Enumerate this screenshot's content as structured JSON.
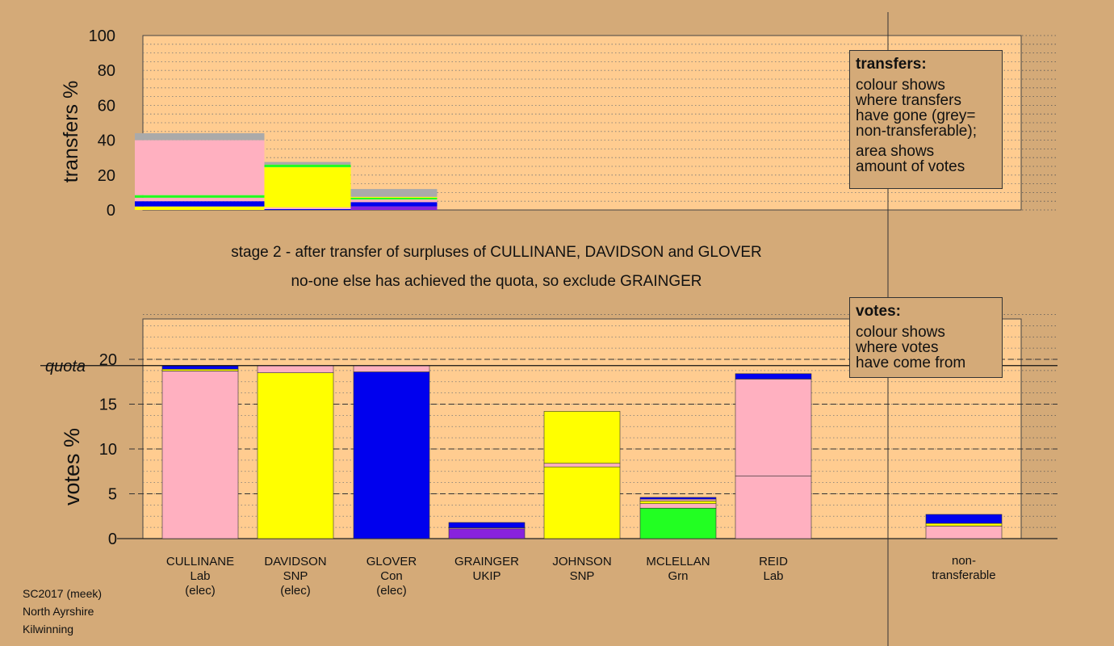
{
  "colors": {
    "background": "#d4aa78",
    "plot": "#ffcc90",
    "Lab": "#ffb0c0",
    "SNP": "#ffff00",
    "Con": "#0000ee",
    "UKIP": "#8822dd",
    "Grn": "#22ff22",
    "non_transferable": "#aaaaaa"
  },
  "caption": {
    "line1": "stage 2 - after transfer of surpluses of CULLINANE, DAVIDSON and GLOVER",
    "line2": "no-one else has achieved the quota, so exclude GRAINGER"
  },
  "footer": {
    "line1": "SC2017 (meek)",
    "line2": "North Ayrshire",
    "line3": "Kilwinning"
  },
  "legend_transfers": {
    "title": "transfers:",
    "lines_a": [
      "colour shows",
      "where transfers",
      "have gone (grey=",
      "non-transferable);"
    ],
    "lines_b": [
      "area shows",
      "amount of votes"
    ]
  },
  "legend_votes": {
    "title": "votes:",
    "lines": [
      "colour shows",
      "where votes",
      "have come from"
    ]
  },
  "candidates": [
    {
      "name": "CULLINANE",
      "party": "Lab",
      "status": "(elec)"
    },
    {
      "name": "DAVIDSON",
      "party": "SNP",
      "status": "(elec)"
    },
    {
      "name": "GLOVER",
      "party": "Con",
      "status": "(elec)"
    },
    {
      "name": "GRAINGER",
      "party": "UKIP",
      "status": ""
    },
    {
      "name": "JOHNSON",
      "party": "SNP",
      "status": ""
    },
    {
      "name": "MCLELLAN",
      "party": "Grn",
      "status": ""
    },
    {
      "name": "REID",
      "party": "Lab",
      "status": ""
    },
    {
      "name": "non-",
      "party": "transferable",
      "status": ""
    }
  ],
  "chart_data": [
    {
      "type": "bar",
      "ylabel": "transfers %",
      "ylim": [
        0,
        100
      ],
      "yticks": [
        0,
        20,
        40,
        60,
        80,
        100
      ],
      "grid": "dotted",
      "legend_position": "top-right",
      "bars": [
        {
          "source": "CULLINANE",
          "width_share": 1.5,
          "segments": [
            {
              "party": "SNP",
              "value": 2
            },
            {
              "party": "Con",
              "value": 3
            },
            {
              "party": "Lab",
              "value": 2
            },
            {
              "party": "Grn",
              "value": 1.5
            },
            {
              "party": "Lab",
              "value": 31.5
            },
            {
              "party": "non_transferable",
              "value": 4
            }
          ]
        },
        {
          "source": "DAVIDSON",
          "width_share": 1.0,
          "segments": [
            {
              "party": "Con",
              "value": 0.5
            },
            {
              "party": "Lab",
              "value": 1
            },
            {
              "party": "SNP",
              "value": 23
            },
            {
              "party": "Grn",
              "value": 1.5
            },
            {
              "party": "non_transferable",
              "value": 1.5
            }
          ]
        },
        {
          "source": "GLOVER",
          "width_share": 1.0,
          "segments": [
            {
              "party": "UKIP",
              "value": 2
            },
            {
              "party": "Con",
              "value": 2.5
            },
            {
              "party": "Lab",
              "value": 1.5
            },
            {
              "party": "Grn",
              "value": 1
            },
            {
              "party": "SNP",
              "value": 0.5
            },
            {
              "party": "non_transferable",
              "value": 4.5
            }
          ]
        }
      ]
    },
    {
      "type": "bar",
      "ylabel": "votes %",
      "ylim": [
        0,
        25
      ],
      "yticks": [
        0,
        5,
        10,
        15,
        20
      ],
      "quota": 19.3,
      "quota_label": "quota",
      "grid": "dashed",
      "legend_position": "top-right",
      "bars": [
        {
          "candidate": "CULLINANE",
          "segments": [
            {
              "party": "Lab",
              "value": 18.7
            },
            {
              "party": "SNP",
              "value": 0.2
            },
            {
              "party": "Con",
              "value": 0.4
            }
          ]
        },
        {
          "candidate": "DAVIDSON",
          "segments": [
            {
              "party": "SNP",
              "value": 18.5
            },
            {
              "party": "Lab",
              "value": 0.8
            }
          ]
        },
        {
          "candidate": "GLOVER",
          "segments": [
            {
              "party": "Con",
              "value": 18.6
            },
            {
              "party": "Lab",
              "value": 0.7
            }
          ]
        },
        {
          "candidate": "GRAINGER",
          "segments": [
            {
              "party": "UKIP",
              "value": 1.1
            },
            {
              "party": "Lab",
              "value": 0.1
            },
            {
              "party": "Con",
              "value": 0.6
            }
          ]
        },
        {
          "candidate": "JOHNSON",
          "segments": [
            {
              "party": "SNP",
              "value": 8.0
            },
            {
              "party": "Lab",
              "value": 0.4
            },
            {
              "party": "SNP",
              "value": 5.8
            }
          ]
        },
        {
          "candidate": "MCLELLAN",
          "segments": [
            {
              "party": "Grn",
              "value": 3.4
            },
            {
              "party": "Lab",
              "value": 0.5
            },
            {
              "party": "SNP",
              "value": 0.3
            },
            {
              "party": "Lab",
              "value": 0.2
            },
            {
              "party": "Con",
              "value": 0.2
            }
          ]
        },
        {
          "candidate": "REID",
          "segments": [
            {
              "party": "Lab",
              "value": 7.0
            },
            {
              "party": "Lab",
              "value": 10.8
            },
            {
              "party": "Con",
              "value": 0.6
            }
          ]
        },
        {
          "candidate": "non-transferable",
          "segments": [
            {
              "party": "Lab",
              "value": 1.4
            },
            {
              "party": "SNP",
              "value": 0.3
            },
            {
              "party": "Con",
              "value": 1.0
            }
          ]
        }
      ]
    }
  ]
}
